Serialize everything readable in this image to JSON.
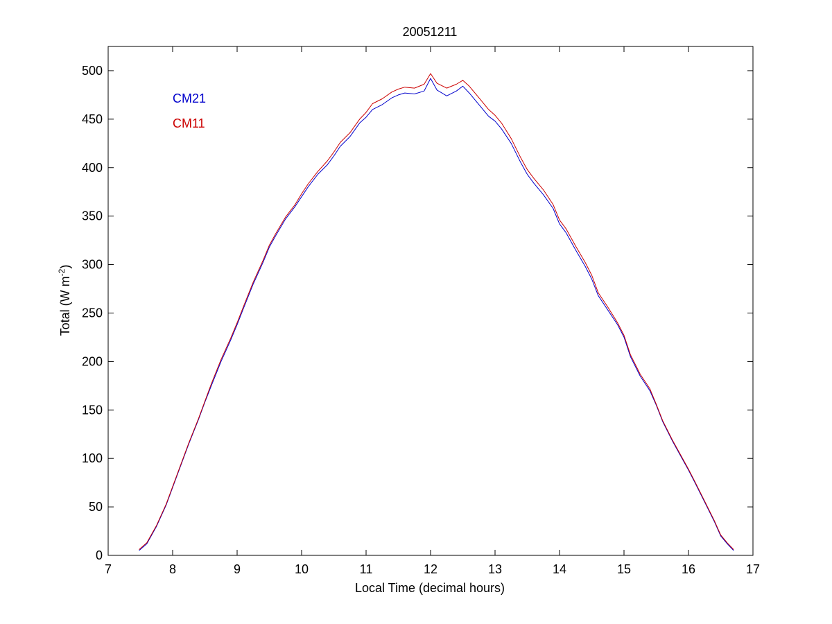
{
  "chart_data": {
    "type": "line",
    "title": "20051211",
    "xlabel": "Local Time (decimal hours)",
    "ylabel": {
      "main": "Total (W m",
      "superscript": "-2",
      "closing": ")"
    },
    "xlim": [
      7,
      17
    ],
    "ylim": [
      0,
      525
    ],
    "xticks": [
      7,
      8,
      9,
      10,
      11,
      12,
      13,
      14,
      15,
      16,
      17
    ],
    "yticks": [
      0,
      50,
      100,
      150,
      200,
      250,
      300,
      350,
      400,
      450,
      500
    ],
    "grid": false,
    "legend_placement": "top-left",
    "series": [
      {
        "name": "CM21",
        "color": "#0000cc",
        "x": [
          7.48,
          7.6,
          7.75,
          7.9,
          8.0,
          8.1,
          8.25,
          8.4,
          8.5,
          8.6,
          8.75,
          8.9,
          9.0,
          9.1,
          9.25,
          9.4,
          9.5,
          9.6,
          9.75,
          9.9,
          10.0,
          10.1,
          10.25,
          10.4,
          10.5,
          10.6,
          10.75,
          10.9,
          11.0,
          11.1,
          11.25,
          11.4,
          11.5,
          11.6,
          11.75,
          11.9,
          12.0,
          12.1,
          12.25,
          12.4,
          12.5,
          12.6,
          12.75,
          12.9,
          13.0,
          13.1,
          13.25,
          13.4,
          13.5,
          13.6,
          13.75,
          13.9,
          14.0,
          14.1,
          14.25,
          14.4,
          14.5,
          14.6,
          14.75,
          14.9,
          15.0,
          15.1,
          15.25,
          15.4,
          15.5,
          15.6,
          15.75,
          15.9,
          16.0,
          16.1,
          16.25,
          16.4,
          16.5,
          16.6,
          16.7
        ],
        "y": [
          5,
          12,
          30,
          52,
          70,
          88,
          115,
          140,
          158,
          175,
          200,
          222,
          238,
          255,
          280,
          302,
          318,
          330,
          347,
          360,
          370,
          380,
          393,
          403,
          412,
          422,
          432,
          446,
          452,
          460,
          465,
          472,
          475,
          477,
          476,
          479,
          492,
          480,
          474,
          479,
          484,
          477,
          465,
          453,
          448,
          440,
          425,
          405,
          393,
          384,
          372,
          358,
          342,
          333,
          315,
          298,
          285,
          268,
          253,
          238,
          225,
          205,
          185,
          170,
          155,
          138,
          118,
          100,
          88,
          75,
          55,
          35,
          20,
          12,
          5
        ]
      },
      {
        "name": "CM11",
        "color": "#cc0000",
        "x": [
          7.48,
          7.6,
          7.75,
          7.9,
          8.0,
          8.1,
          8.25,
          8.4,
          8.5,
          8.6,
          8.75,
          8.9,
          9.0,
          9.1,
          9.25,
          9.4,
          9.5,
          9.6,
          9.75,
          9.9,
          10.0,
          10.1,
          10.25,
          10.4,
          10.5,
          10.6,
          10.75,
          10.9,
          11.0,
          11.1,
          11.25,
          11.4,
          11.5,
          11.6,
          11.75,
          11.9,
          12.0,
          12.1,
          12.25,
          12.4,
          12.5,
          12.6,
          12.75,
          12.9,
          13.0,
          13.1,
          13.25,
          13.4,
          13.5,
          13.6,
          13.75,
          13.9,
          14.0,
          14.1,
          14.25,
          14.4,
          14.5,
          14.6,
          14.75,
          14.9,
          15.0,
          15.1,
          15.25,
          15.4,
          15.5,
          15.6,
          15.75,
          15.9,
          16.0,
          16.1,
          16.25,
          16.4,
          16.5,
          16.6,
          16.7
        ],
        "y": [
          6,
          13,
          31,
          53,
          71,
          89,
          116,
          141,
          159,
          177,
          202,
          224,
          240,
          257,
          282,
          304,
          320,
          332,
          349,
          362,
          373,
          383,
          396,
          407,
          416,
          426,
          436,
          450,
          457,
          466,
          471,
          478,
          481,
          483,
          482,
          486,
          497,
          487,
          482,
          486,
          490,
          484,
          472,
          460,
          454,
          446,
          430,
          410,
          398,
          389,
          377,
          362,
          346,
          337,
          319,
          302,
          289,
          271,
          256,
          240,
          227,
          207,
          187,
          172,
          156,
          139,
          119,
          101,
          89,
          76,
          56,
          36,
          21,
          13,
          6
        ]
      }
    ]
  }
}
